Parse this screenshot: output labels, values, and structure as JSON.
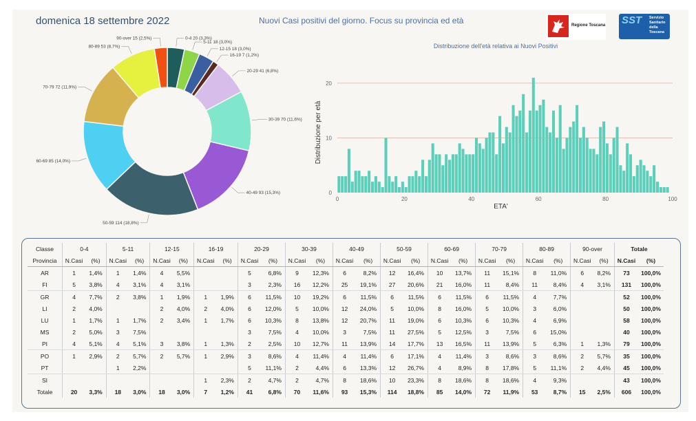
{
  "header": {
    "date": "domenica 18 settembre 2022",
    "title": "Nuovi Casi positivi del giorno. Focus su provincia ed età",
    "logo_regione": "Regione Toscana",
    "logo_sst": "SST",
    "logo_sst_text": [
      "Servizio",
      "Sanitario",
      "della",
      "Toscana"
    ]
  },
  "chart_data": [
    {
      "type": "pie",
      "style": "donut",
      "slices": [
        {
          "label": "0-4 20 (3,3%)",
          "value": 20,
          "color": "#1f5c5c"
        },
        {
          "label": "5-11 18 (3,0%)",
          "value": 18,
          "color": "#8fd548"
        },
        {
          "label": "12-15 18 (3,0%)",
          "value": 18,
          "color": "#3a5fa0"
        },
        {
          "label": "16-19 7 (1,2%)",
          "value": 7,
          "color": "#5a2a22"
        },
        {
          "label": "20-29 41 (6,8%)",
          "value": 41,
          "color": "#d7bdea"
        },
        {
          "label": "30-39 70 (11,6%)",
          "value": 70,
          "color": "#80e6cc"
        },
        {
          "label": "40-49 93 (15,3%)",
          "value": 93,
          "color": "#9a59d4"
        },
        {
          "label": "50-59 114 (18,8%)",
          "value": 114,
          "color": "#3d616c"
        },
        {
          "label": "60-69 85 (14,0%)",
          "value": 85,
          "color": "#4dd0f2"
        },
        {
          "label": "70-79 72 (11,9%)",
          "value": 72,
          "color": "#d6b24e"
        },
        {
          "label": "80-89 53 (8,7%)",
          "value": 53,
          "color": "#e6f03e"
        },
        {
          "label": "90-over 15 (2,5%)",
          "value": 15,
          "color": "#f05012"
        }
      ]
    },
    {
      "type": "bar",
      "title": "Distribuzione dell'età relativa ai Nuovi Positivi",
      "xlabel": "ETA'",
      "ylabel": "Distribuzione per età",
      "xlim": [
        0,
        100
      ],
      "ylim": [
        0,
        22
      ],
      "xticks": [
        "0",
        "20",
        "40",
        "60",
        "80",
        "100"
      ],
      "yticks": [
        "0",
        "10",
        "20"
      ],
      "color": "#5ccfbb",
      "x": [
        0,
        1,
        2,
        3,
        4,
        5,
        6,
        7,
        8,
        9,
        10,
        11,
        12,
        13,
        14,
        15,
        16,
        17,
        18,
        19,
        20,
        21,
        22,
        23,
        24,
        25,
        26,
        27,
        28,
        29,
        30,
        31,
        32,
        33,
        34,
        35,
        36,
        37,
        38,
        39,
        40,
        41,
        42,
        43,
        44,
        45,
        46,
        47,
        48,
        49,
        50,
        51,
        52,
        53,
        54,
        55,
        56,
        57,
        58,
        59,
        60,
        61,
        62,
        63,
        64,
        65,
        66,
        67,
        68,
        69,
        70,
        71,
        72,
        73,
        74,
        75,
        76,
        77,
        78,
        79,
        80,
        81,
        82,
        83,
        84,
        85,
        86,
        87,
        88,
        89,
        90,
        91,
        92,
        93,
        94,
        95,
        96,
        97,
        98
      ],
      "values": [
        3,
        3,
        3,
        8,
        2,
        4,
        4,
        3,
        3,
        4,
        2,
        3,
        2,
        1,
        10,
        3,
        2,
        3,
        1,
        2,
        1,
        3,
        3,
        4,
        3,
        6,
        3,
        6,
        9,
        7,
        7,
        5,
        7,
        6,
        7,
        7,
        9,
        8,
        7,
        7,
        7,
        10,
        9,
        8,
        10,
        11,
        11,
        7,
        14,
        9,
        12,
        11,
        16,
        14,
        15,
        18,
        11,
        15,
        21,
        15,
        16,
        17,
        12,
        11,
        15,
        10,
        16,
        8,
        10,
        12,
        13,
        16,
        10,
        12,
        10,
        8,
        8,
        7,
        12,
        13,
        9,
        7,
        10,
        12,
        5,
        4,
        9,
        7,
        3,
        5,
        6,
        5,
        4,
        3,
        5,
        2,
        1,
        1,
        1
      ]
    }
  ],
  "table": {
    "class_label": "Classe",
    "province_label": "Provincia",
    "total_label": "Totale",
    "classes": [
      "0-4",
      "5-11",
      "12-15",
      "16-19",
      "20-29",
      "30-39",
      "40-49",
      "50-59",
      "60-69",
      "70-79",
      "80-89",
      "90-over"
    ],
    "ncasi_label": "N.Casi",
    "pct_label": "(%)",
    "rows": [
      {
        "prov": "AR",
        "cells": [
          [
            "1",
            "1,4%"
          ],
          [
            "1",
            "1,4%"
          ],
          [
            "4",
            "5,5%"
          ],
          [
            "",
            ""
          ],
          [
            "5",
            "6,8%"
          ],
          [
            "9",
            "12,3%"
          ],
          [
            "6",
            "8,2%"
          ],
          [
            "12",
            "16,4%"
          ],
          [
            "10",
            "13,7%"
          ],
          [
            "11",
            "15,1%"
          ],
          [
            "8",
            "11,0%"
          ],
          [
            "6",
            "8,2%"
          ]
        ],
        "total": [
          "73",
          "100,0%"
        ]
      },
      {
        "prov": "FI",
        "cells": [
          [
            "5",
            "3,8%"
          ],
          [
            "4",
            "3,1%"
          ],
          [
            "4",
            "3,1%"
          ],
          [
            "",
            ""
          ],
          [
            "3",
            "2,3%"
          ],
          [
            "16",
            "12,2%"
          ],
          [
            "25",
            "19,1%"
          ],
          [
            "27",
            "20,6%"
          ],
          [
            "21",
            "16,0%"
          ],
          [
            "11",
            "8,4%"
          ],
          [
            "11",
            "8,4%"
          ],
          [
            "4",
            "3,1%"
          ]
        ],
        "total": [
          "131",
          "100,0%"
        ]
      },
      {
        "prov": "GR",
        "cells": [
          [
            "4",
            "7,7%"
          ],
          [
            "2",
            "3,8%"
          ],
          [
            "1",
            "1,9%"
          ],
          [
            "1",
            "1,9%"
          ],
          [
            "6",
            "11,5%"
          ],
          [
            "10",
            "19,2%"
          ],
          [
            "6",
            "11,5%"
          ],
          [
            "6",
            "11,5%"
          ],
          [
            "6",
            "11,5%"
          ],
          [
            "6",
            "11,5%"
          ],
          [
            "4",
            "7,7%"
          ],
          [
            "",
            ""
          ]
        ],
        "total": [
          "52",
          "100,0%"
        ]
      },
      {
        "prov": "LI",
        "cells": [
          [
            "2",
            "4,0%"
          ],
          [
            "",
            ""
          ],
          [
            "2",
            "4,0%"
          ],
          [
            "2",
            "4,0%"
          ],
          [
            "6",
            "12,0%"
          ],
          [
            "5",
            "10,0%"
          ],
          [
            "12",
            "24,0%"
          ],
          [
            "5",
            "10,0%"
          ],
          [
            "8",
            "16,0%"
          ],
          [
            "5",
            "10,0%"
          ],
          [
            "3",
            "6,0%"
          ],
          [
            "",
            ""
          ]
        ],
        "total": [
          "50",
          "100,0%"
        ]
      },
      {
        "prov": "LU",
        "cells": [
          [
            "1",
            "1,7%"
          ],
          [
            "1",
            "1,7%"
          ],
          [
            "2",
            "3,4%"
          ],
          [
            "1",
            "1,7%"
          ],
          [
            "6",
            "10,3%"
          ],
          [
            "8",
            "13,8%"
          ],
          [
            "12",
            "20,7%"
          ],
          [
            "11",
            "19,0%"
          ],
          [
            "6",
            "10,3%"
          ],
          [
            "6",
            "10,3%"
          ],
          [
            "4",
            "6,9%"
          ],
          [
            "",
            ""
          ]
        ],
        "total": [
          "58",
          "100,0%"
        ]
      },
      {
        "prov": "MS",
        "cells": [
          [
            "2",
            "5,0%"
          ],
          [
            "3",
            "7,5%"
          ],
          [
            "",
            ""
          ],
          [
            "",
            ""
          ],
          [
            "3",
            "7,5%"
          ],
          [
            "4",
            "10,0%"
          ],
          [
            "3",
            "7,5%"
          ],
          [
            "11",
            "27,5%"
          ],
          [
            "5",
            "12,5%"
          ],
          [
            "3",
            "7,5%"
          ],
          [
            "6",
            "15,0%"
          ],
          [
            "",
            ""
          ]
        ],
        "total": [
          "40",
          "100,0%"
        ]
      },
      {
        "prov": "PI",
        "cells": [
          [
            "4",
            "5,1%"
          ],
          [
            "4",
            "5,1%"
          ],
          [
            "3",
            "3,8%"
          ],
          [
            "1",
            "1,3%"
          ],
          [
            "2",
            "2,5%"
          ],
          [
            "10",
            "12,7%"
          ],
          [
            "11",
            "13,9%"
          ],
          [
            "14",
            "17,7%"
          ],
          [
            "13",
            "16,5%"
          ],
          [
            "11",
            "13,9%"
          ],
          [
            "5",
            "6,3%"
          ],
          [
            "1",
            "1,3%"
          ]
        ],
        "total": [
          "79",
          "100,0%"
        ]
      },
      {
        "prov": "PO",
        "cells": [
          [
            "1",
            "2,9%"
          ],
          [
            "2",
            "5,7%"
          ],
          [
            "2",
            "5,7%"
          ],
          [
            "1",
            "2,9%"
          ],
          [
            "3",
            "8,6%"
          ],
          [
            "4",
            "11,4%"
          ],
          [
            "4",
            "11,4%"
          ],
          [
            "6",
            "17,1%"
          ],
          [
            "4",
            "11,4%"
          ],
          [
            "3",
            "8,6%"
          ],
          [
            "3",
            "8,6%"
          ],
          [
            "2",
            "5,7%"
          ]
        ],
        "total": [
          "35",
          "100,0%"
        ]
      },
      {
        "prov": "PT",
        "cells": [
          [
            "",
            ""
          ],
          [
            "1",
            "2,2%"
          ],
          [
            "",
            ""
          ],
          [
            "",
            ""
          ],
          [
            "5",
            "11,1%"
          ],
          [
            "2",
            "4,4%"
          ],
          [
            "6",
            "13,3%"
          ],
          [
            "12",
            "26,7%"
          ],
          [
            "4",
            "8,9%"
          ],
          [
            "8",
            "17,8%"
          ],
          [
            "5",
            "11,1%"
          ],
          [
            "2",
            "4,4%"
          ]
        ],
        "total": [
          "45",
          "100,0%"
        ]
      },
      {
        "prov": "SI",
        "cells": [
          [
            "",
            ""
          ],
          [
            "",
            ""
          ],
          [
            "",
            ""
          ],
          [
            "1",
            "2,3%"
          ],
          [
            "2",
            "4,7%"
          ],
          [
            "2",
            "4,7%"
          ],
          [
            "8",
            "18,6%"
          ],
          [
            "10",
            "23,3%"
          ],
          [
            "8",
            "18,6%"
          ],
          [
            "8",
            "18,6%"
          ],
          [
            "4",
            "9,3%"
          ],
          [
            "",
            ""
          ]
        ],
        "total": [
          "43",
          "100,0%"
        ]
      }
    ],
    "totals": {
      "label": "Totale",
      "cells": [
        [
          "20",
          "3,3%"
        ],
        [
          "18",
          "3,0%"
        ],
        [
          "18",
          "3,0%"
        ],
        [
          "7",
          "1,2%"
        ],
        [
          "41",
          "6,8%"
        ],
        [
          "70",
          "11,6%"
        ],
        [
          "93",
          "15,3%"
        ],
        [
          "114",
          "18,8%"
        ],
        [
          "85",
          "14,0%"
        ],
        [
          "72",
          "11,9%"
        ],
        [
          "53",
          "8,7%"
        ],
        [
          "15",
          "2,5%"
        ]
      ],
      "total": [
        "606",
        "100,0%"
      ]
    }
  }
}
